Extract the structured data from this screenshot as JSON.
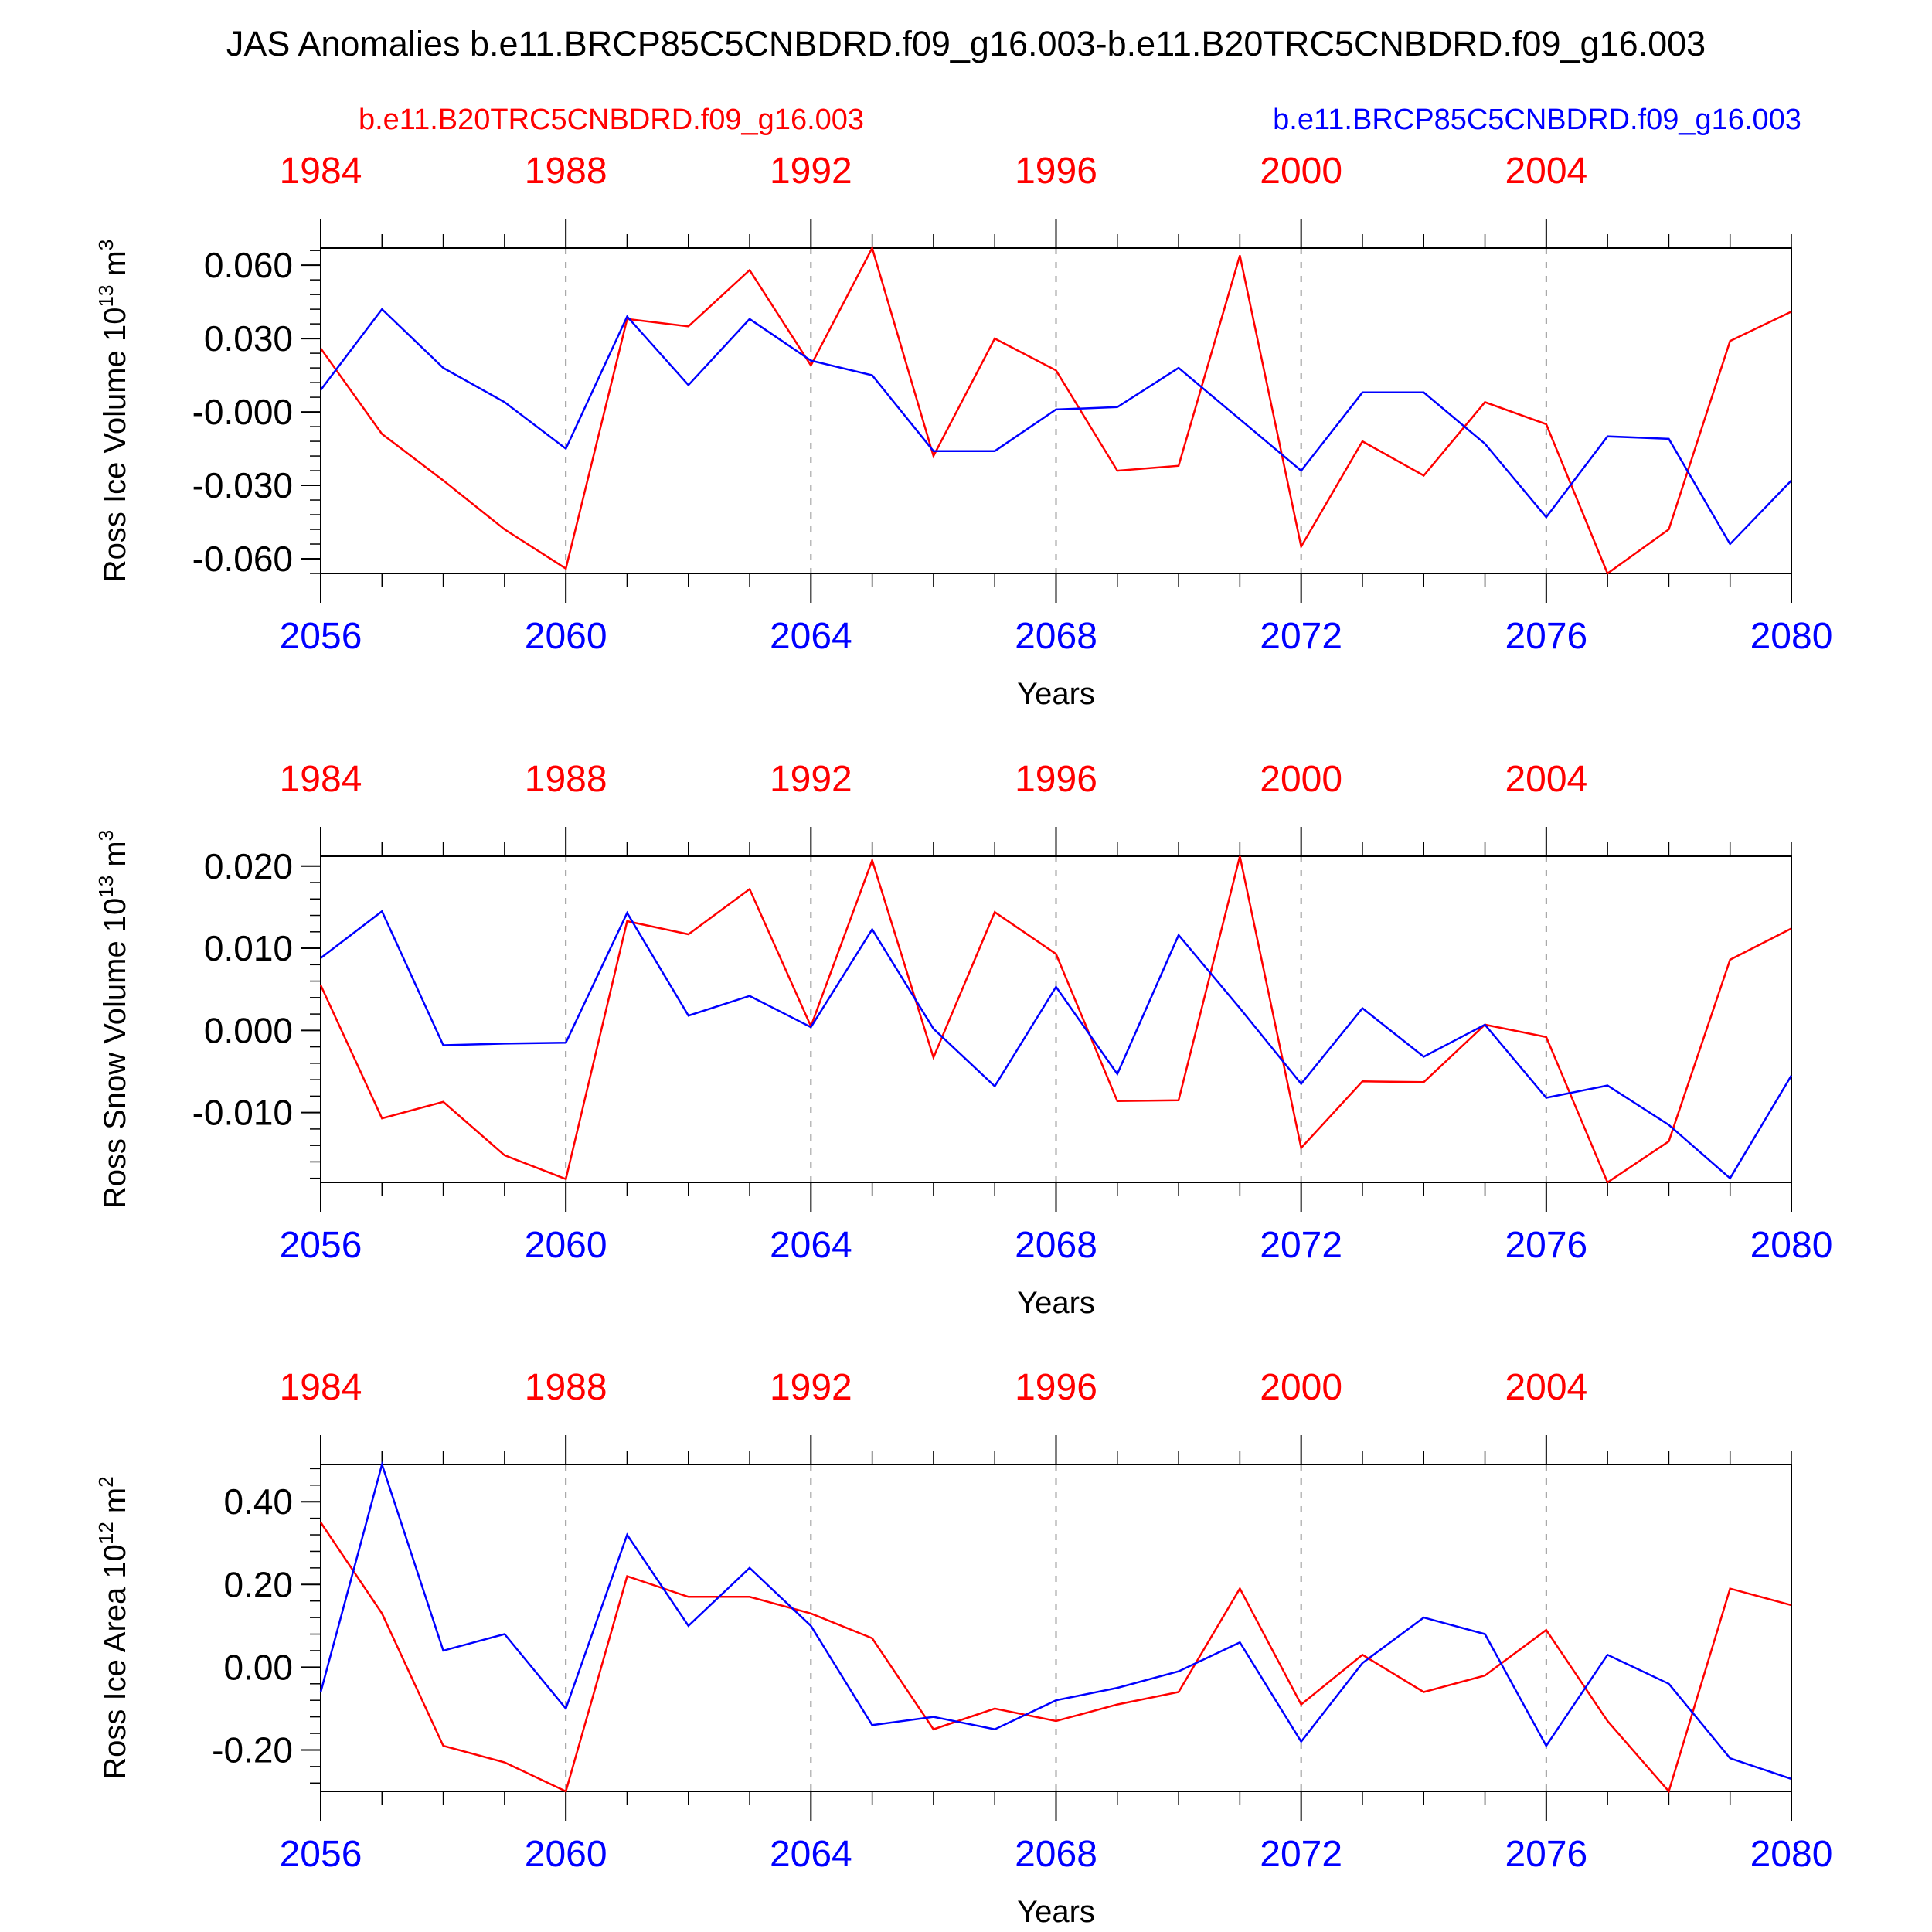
{
  "title": "JAS Anomalies b.e11.BRCP85C5CNBDRD.f09_g16.003-b.e11.B20TRC5CNBDRD.f09_g16.003",
  "legend": {
    "left_label": "b.e11.B20TRC5CNBDRD.f09_g16.003",
    "right_label": "b.e11.BRCP85C5CNBDRD.f09_g16.003",
    "left_color": "#ff0000",
    "right_color": "#0000ff"
  },
  "chart_data": [
    {
      "type": "line",
      "ylabel": "Ross Ice Volume 10",
      "ylabel_sup": "13",
      "ylabel_unit": " m",
      "ylabel_unit_sup": "3",
      "xlabel": "Years",
      "ylim": [
        -0.066,
        0.067
      ],
      "yticks": [
        0.06,
        0.03,
        0.0,
        -0.03,
        -0.06
      ],
      "ytick_labels": [
        "0.060",
        "0.030",
        "-0.000",
        "-0.030",
        "-0.060"
      ],
      "xlim": [
        2056,
        2080
      ],
      "xticks_bottom": [
        2056,
        2060,
        2064,
        2068,
        2072,
        2076,
        2080
      ],
      "xtick_labels_bottom": [
        "2056",
        "2060",
        "2064",
        "2068",
        "2072",
        "2076",
        "2080"
      ],
      "top_axis_offset": -72,
      "xticks_top": [
        1984,
        1988,
        1992,
        1996,
        2000,
        2004
      ],
      "xtick_labels_top": [
        "1984",
        "1988",
        "1992",
        "1996",
        "2000",
        "2004"
      ],
      "x": [
        2056,
        2057,
        2058,
        2059,
        2060,
        2061,
        2062,
        2063,
        2064,
        2065,
        2066,
        2067,
        2068,
        2069,
        2070,
        2071,
        2072,
        2073,
        2074,
        2075,
        2076,
        2077,
        2078,
        2079,
        2080
      ],
      "series": [
        {
          "color": "#ff0000",
          "values": [
            0.026,
            -0.009,
            -0.028,
            -0.048,
            -0.064,
            0.038,
            0.035,
            0.058,
            0.019,
            0.067,
            -0.018,
            0.03,
            0.017,
            -0.024,
            -0.022,
            0.064,
            -0.055,
            -0.012,
            -0.026,
            0.004,
            -0.005,
            -0.066,
            -0.048,
            0.029,
            0.041
          ]
        },
        {
          "color": "#0000ff",
          "values": [
            0.009,
            0.042,
            0.018,
            0.004,
            -0.015,
            0.039,
            0.011,
            0.038,
            0.021,
            0.015,
            -0.016,
            -0.016,
            0.001,
            0.002,
            0.018,
            -0.003,
            -0.024,
            0.008,
            0.008,
            -0.013,
            -0.043,
            -0.01,
            -0.011,
            -0.054,
            -0.028
          ]
        }
      ]
    },
    {
      "type": "line",
      "ylabel": "Ross Snow Volume 10",
      "ylabel_sup": "13",
      "ylabel_unit": " m",
      "ylabel_unit_sup": "3",
      "xlabel": "Years",
      "ylim": [
        -0.0185,
        0.0212
      ],
      "yticks": [
        0.02,
        0.01,
        0.0,
        -0.01
      ],
      "ytick_labels": [
        "0.020",
        "0.010",
        "0.000",
        "-0.010"
      ],
      "xlim": [
        2056,
        2080
      ],
      "xticks_bottom": [
        2056,
        2060,
        2064,
        2068,
        2072,
        2076,
        2080
      ],
      "xtick_labels_bottom": [
        "2056",
        "2060",
        "2064",
        "2068",
        "2072",
        "2076",
        "2080"
      ],
      "top_axis_offset": -72,
      "xticks_top": [
        1984,
        1988,
        1992,
        1996,
        2000,
        2004
      ],
      "xtick_labels_top": [
        "1984",
        "1988",
        "1992",
        "1996",
        "2000",
        "2004"
      ],
      "x": [
        2056,
        2057,
        2058,
        2059,
        2060,
        2061,
        2062,
        2063,
        2064,
        2065,
        2066,
        2067,
        2068,
        2069,
        2070,
        2071,
        2072,
        2073,
        2074,
        2075,
        2076,
        2077,
        2078,
        2079,
        2080
      ],
      "series": [
        {
          "color": "#ff0000",
          "values": [
            0.0055,
            -0.0107,
            -0.0087,
            -0.0152,
            -0.0181,
            0.0133,
            0.0117,
            0.0172,
            0.0005,
            0.0207,
            -0.0033,
            0.0144,
            0.0093,
            -0.0086,
            -0.0085,
            0.0212,
            -0.0143,
            -0.0062,
            -0.0063,
            0.0007,
            -0.0008,
            -0.0185,
            -0.0135,
            0.0086,
            0.0124
          ]
        },
        {
          "color": "#0000ff",
          "values": [
            0.0088,
            0.0145,
            -0.0018,
            -0.0016,
            -0.0015,
            0.0143,
            0.0018,
            0.0042,
            0.0004,
            0.0123,
            0.0002,
            -0.0068,
            0.0053,
            -0.0053,
            0.0116,
            0.0027,
            -0.0065,
            0.0027,
            -0.0032,
            0.0007,
            -0.0082,
            -0.0067,
            -0.0115,
            -0.018,
            -0.0055
          ]
        }
      ]
    },
    {
      "type": "line",
      "ylabel": "Ross Ice Area 10",
      "ylabel_sup": "12",
      "ylabel_unit": " m",
      "ylabel_unit_sup": "2",
      "xlabel": "Years",
      "ylim": [
        -0.3,
        0.49
      ],
      "yticks": [
        0.4,
        0.2,
        0.0,
        -0.2
      ],
      "ytick_labels": [
        "0.40",
        "0.20",
        "0.00",
        "-0.20"
      ],
      "xlim": [
        2056,
        2080
      ],
      "xticks_bottom": [
        2056,
        2060,
        2064,
        2068,
        2072,
        2076,
        2080
      ],
      "xtick_labels_bottom": [
        "2056",
        "2060",
        "2064",
        "2068",
        "2072",
        "2076",
        "2080"
      ],
      "top_axis_offset": -72,
      "xticks_top": [
        1984,
        1988,
        1992,
        1996,
        2000,
        2004
      ],
      "xtick_labels_top": [
        "1984",
        "1988",
        "1992",
        "1996",
        "2000",
        "2004"
      ],
      "x": [
        2056,
        2057,
        2058,
        2059,
        2060,
        2061,
        2062,
        2063,
        2064,
        2065,
        2066,
        2067,
        2068,
        2069,
        2070,
        2071,
        2072,
        2073,
        2074,
        2075,
        2076,
        2077,
        2078,
        2079,
        2080
      ],
      "series": [
        {
          "color": "#ff0000",
          "values": [
            0.35,
            0.13,
            -0.19,
            -0.23,
            -0.3,
            0.22,
            0.17,
            0.17,
            0.13,
            0.07,
            -0.15,
            -0.1,
            -0.13,
            -0.09,
            -0.06,
            0.19,
            -0.09,
            0.03,
            -0.06,
            -0.02,
            0.09,
            -0.13,
            -0.3,
            0.19,
            0.15
          ]
        },
        {
          "color": "#0000ff",
          "values": [
            -0.06,
            0.49,
            0.04,
            0.08,
            -0.1,
            0.32,
            0.1,
            0.24,
            0.1,
            -0.14,
            -0.12,
            -0.15,
            -0.08,
            -0.05,
            -0.01,
            0.06,
            -0.18,
            0.01,
            0.12,
            0.08,
            -0.19,
            0.03,
            -0.04,
            -0.22,
            -0.27
          ]
        }
      ]
    }
  ]
}
